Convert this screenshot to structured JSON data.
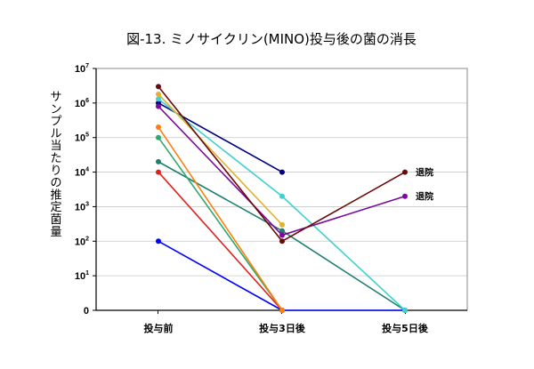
{
  "chart_data": {
    "type": "line",
    "title": "図-13. ミノサイクリン(MINO)投与後の菌の消長",
    "xlabel": "",
    "ylabel": "サンプル当たりの推定菌量",
    "categories": [
      "投与前",
      "投与3日後",
      "投与5日後"
    ],
    "yscale": "log",
    "ylim_exponents": [
      0,
      7
    ],
    "y_ticks": [
      {
        "base": "0",
        "exp": ""
      },
      {
        "base": "10",
        "exp": "1"
      },
      {
        "base": "10",
        "exp": "2"
      },
      {
        "base": "10",
        "exp": "3"
      },
      {
        "base": "10",
        "exp": "4"
      },
      {
        "base": "10",
        "exp": "5"
      },
      {
        "base": "10",
        "exp": "6"
      },
      {
        "base": "10",
        "exp": "7"
      }
    ],
    "series": [
      {
        "name": "s1",
        "color": "#0000ff",
        "values": [
          100,
          0,
          0
        ]
      },
      {
        "name": "s2",
        "color": "#e0201a",
        "values": [
          10000,
          0,
          null
        ]
      },
      {
        "name": "s3",
        "color": "#1f7f6f",
        "values": [
          20000,
          200,
          0
        ]
      },
      {
        "name": "s4",
        "color": "#2ea86c",
        "values": [
          100000,
          0,
          null
        ]
      },
      {
        "name": "s5",
        "color": "#ff7f0e",
        "values": [
          200000,
          0,
          null
        ]
      },
      {
        "name": "s6",
        "color": "#000080",
        "values": [
          1000000,
          10000,
          null
        ]
      },
      {
        "name": "s7",
        "color": "#40d0d0",
        "values": [
          1300000,
          2000,
          0
        ]
      },
      {
        "name": "s8",
        "color": "#e0b030",
        "values": [
          1800000,
          300,
          null
        ]
      },
      {
        "name": "s9",
        "color": "#7a0a9a",
        "values": [
          800000,
          150,
          2000
        ]
      },
      {
        "name": "s10",
        "color": "#6a0a0a",
        "values": [
          3000000,
          100,
          10000
        ]
      }
    ],
    "annotations": [
      {
        "text": "退院",
        "series": "s10"
      },
      {
        "text": "退院",
        "series": "s9"
      }
    ]
  }
}
